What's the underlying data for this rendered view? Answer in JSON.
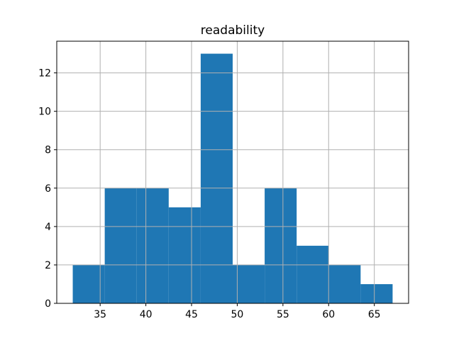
{
  "chart_data": {
    "type": "bar",
    "subtype": "histogram",
    "title": "readability",
    "xlabel": "",
    "ylabel": "",
    "bin_edges": [
      32,
      35.5,
      39,
      42.5,
      46,
      49.5,
      53,
      56.5,
      60,
      63.5,
      67
    ],
    "counts": [
      2,
      6,
      6,
      5,
      13,
      2,
      6,
      3,
      2,
      1
    ],
    "xticks": [
      35,
      40,
      45,
      50,
      55,
      60,
      65
    ],
    "yticks": [
      0,
      2,
      4,
      6,
      8,
      10,
      12
    ],
    "xlim": [
      30.25,
      68.75
    ],
    "ylim": [
      0,
      13.65
    ],
    "grid": true,
    "legend": "none",
    "bar_color": "#1f77b4",
    "grid_color": "#b0b0b0",
    "spine_color": "#000000",
    "background_color": "#ffffff"
  }
}
